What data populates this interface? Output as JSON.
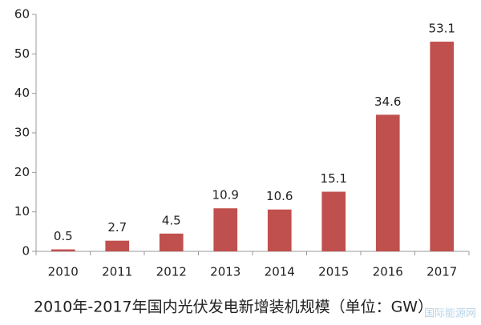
{
  "chart_data": {
    "type": "bar",
    "title": "2010年-2017年国内光伏发电新增装机规模（单位：GW）",
    "watermark": "国际能源网",
    "categories": [
      "2010",
      "2011",
      "2012",
      "2013",
      "2014",
      "2015",
      "2016",
      "2017"
    ],
    "values": [
      0.5,
      2.7,
      4.5,
      10.9,
      10.6,
      15.1,
      34.6,
      53.1
    ],
    "color": "#c0504d",
    "ylim": [
      0,
      60
    ],
    "yticks": [
      0,
      10,
      20,
      30,
      40,
      50,
      60
    ],
    "grid": false
  }
}
